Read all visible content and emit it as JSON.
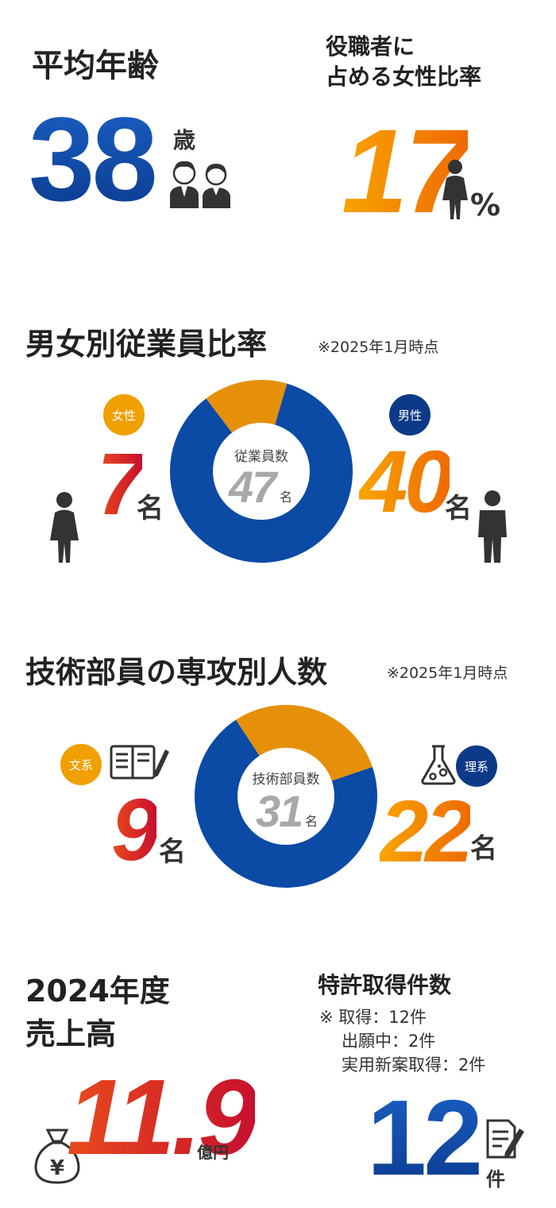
{
  "age": {
    "title": "平均年齢",
    "value": "38",
    "unit": "歳"
  },
  "women_mgr": {
    "title_line1": "役職者に",
    "title_line2": "占める女性比率",
    "value": "17",
    "unit": "%"
  },
  "gender": {
    "title": "男女別従業員比率",
    "note": "※2025年1月時点",
    "center_label": "従業員数",
    "center_value": "47",
    "center_unit": "名",
    "female_badge": "女性",
    "female_value": "7",
    "female_unit": "名",
    "male_badge": "男性",
    "male_value": "40",
    "male_unit": "名",
    "colors": {
      "female": "#e6900a",
      "male": "#0b4aa5"
    }
  },
  "majors": {
    "title": "技術部員の専攻別人数",
    "note": "※2025年1月時点",
    "center_label": "技術部員数",
    "center_value": "31",
    "center_unit": "名",
    "arts_badge": "文系",
    "arts_value": "9",
    "arts_unit": "名",
    "sci_badge": "理系",
    "sci_value": "22",
    "sci_unit": "名"
  },
  "sales": {
    "title_line1": "2024年度",
    "title_line2": "売上高",
    "value": "11.9",
    "unit": "億円"
  },
  "patents": {
    "title": "特許取得件数",
    "note_line1": "※ 取得：12件",
    "note_line2": "出願中：2件",
    "note_line3": "実用新案取得：2件",
    "value": "12",
    "unit": "件"
  },
  "chart_data": [
    {
      "type": "pie",
      "categories": [
        "女性",
        "男性"
      ],
      "values": [
        7,
        40
      ],
      "title": "男女別従業員比率"
    },
    {
      "type": "pie",
      "categories": [
        "文系",
        "理系"
      ],
      "values": [
        9,
        22
      ],
      "title": "技術部員の専攻別人数"
    }
  ]
}
